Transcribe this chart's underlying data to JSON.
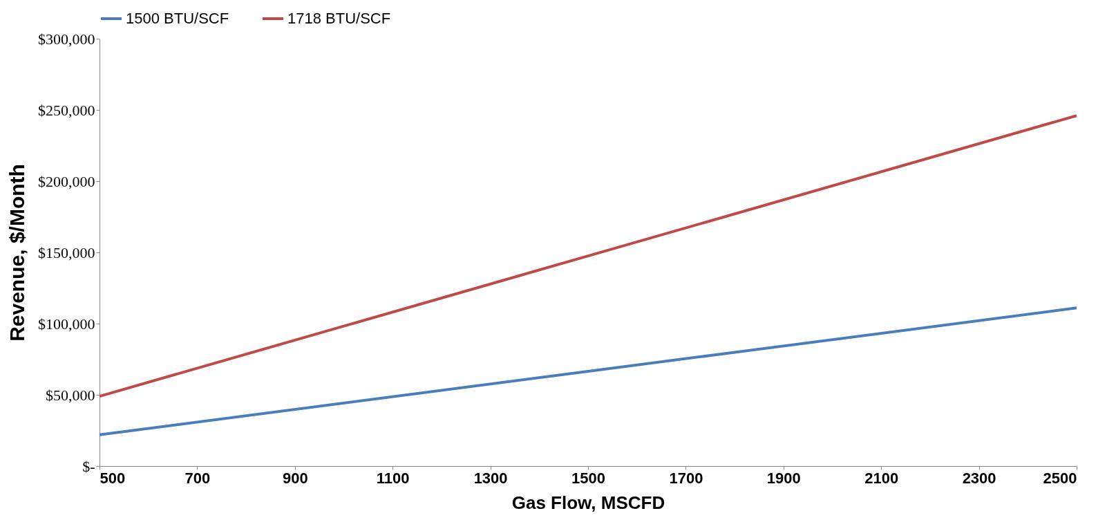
{
  "chart_data": {
    "type": "line",
    "xlabel": "Gas Flow, MSCFD",
    "ylabel": "Revenue, $/Month",
    "x": [
      500,
      1500,
      2500
    ],
    "series": [
      {
        "name": "1500 BTU/SCF",
        "color": "#4a7ebb",
        "values": [
          22000,
          66500,
          111000
        ]
      },
      {
        "name": "1718 BTU/SCF",
        "color": "#be4b48",
        "values": [
          49000,
          147500,
          246000
        ]
      }
    ],
    "xlim": [
      500,
      2500
    ],
    "xticks": [
      500,
      700,
      900,
      1100,
      1300,
      1500,
      1700,
      1900,
      2100,
      2300,
      2500
    ],
    "ylim": [
      0,
      300000
    ],
    "yticks": [
      {
        "value": 0,
        "label": "$-"
      },
      {
        "value": 50000,
        "label": "$50,000"
      },
      {
        "value": 100000,
        "label": "$100,000"
      },
      {
        "value": 150000,
        "label": "$150,000"
      },
      {
        "value": 200000,
        "label": "$200,000"
      },
      {
        "value": 250000,
        "label": "$250,000"
      },
      {
        "value": 300000,
        "label": "$300,000"
      }
    ],
    "grid": false,
    "legend": "top",
    "marker": "none",
    "line_style": "solid"
  }
}
